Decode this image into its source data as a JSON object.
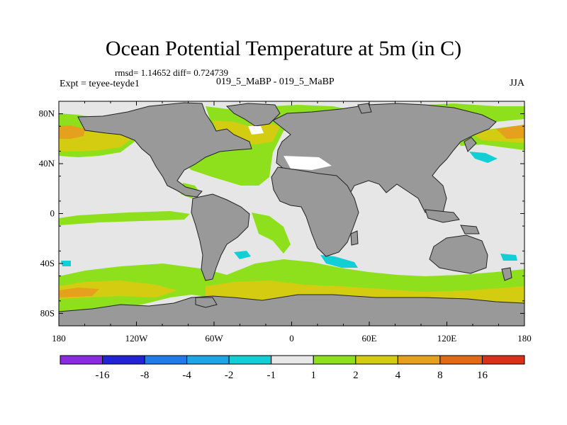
{
  "title": "Ocean Potential Temperature at 5m (in C)",
  "stats": {
    "rmsd_diff": "rmsd= 1.14652 diff= 0.724739",
    "left_label": "Expt = teyee-teyde1",
    "center_label": "019_5_MaBP - 019_5_MaBP",
    "right_label": "JJA"
  },
  "axes": {
    "lat_ticks": [
      "80N",
      "40N",
      "0",
      "40S",
      "80S"
    ],
    "lat_values": [
      80,
      40,
      0,
      -40,
      -80
    ],
    "lon_ticks": [
      "180",
      "120W",
      "60W",
      "0",
      "60E",
      "120E",
      "180"
    ],
    "lon_values": [
      -180,
      -120,
      -60,
      0,
      60,
      120,
      180
    ]
  },
  "colorbar": {
    "labels": [
      "-16",
      "-8",
      "-4",
      "-2",
      "-1",
      "1",
      "2",
      "4",
      "8",
      "16"
    ],
    "colors": [
      "#8a2be2",
      "#2323d6",
      "#1e7be8",
      "#1ea5e6",
      "#12cfd6",
      "#e8e8e8",
      "#8ee01c",
      "#d4cc10",
      "#e5a01e",
      "#e26a14",
      "#d9301a"
    ]
  },
  "colors": {
    "land": "#999999",
    "ocean_neutral": "#e6e6e6",
    "positive_small": "#8ee01c",
    "positive_mid": "#d4cc10",
    "positive_high": "#e5a01e",
    "positive_max": "#e26a14",
    "negative_small": "#12cfd6"
  }
}
